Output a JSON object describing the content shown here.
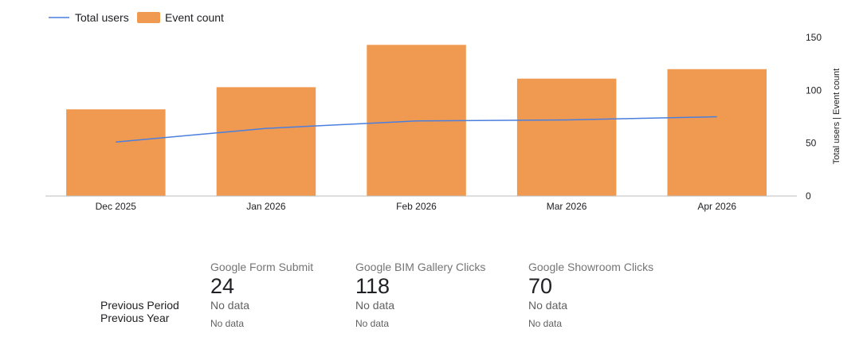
{
  "chart_data": {
    "type": "bar",
    "categories": [
      "Dec 2025",
      "Jan 2026",
      "Feb 2026",
      "Mar 2026",
      "Apr 2026"
    ],
    "series": [
      {
        "name": "Event count",
        "type": "bar",
        "values": [
          82,
          103,
          143,
          111,
          120
        ],
        "color": "#f09a51"
      },
      {
        "name": "Total users",
        "type": "line",
        "values": [
          51,
          64,
          71,
          72,
          75
        ],
        "color": "#4a7fde"
      }
    ],
    "y_axis": {
      "position": "right",
      "label": "Total users | Event count",
      "ylim": [
        0,
        150
      ],
      "ticks": [
        0,
        50,
        100,
        150
      ]
    },
    "legend": {
      "position": "top-left",
      "entries": [
        "Total users",
        "Event count"
      ]
    },
    "grid": false
  },
  "legend": {
    "line_label": "Total users",
    "bar_label": "Event count"
  },
  "comparison_labels": {
    "previous_period": "Previous Period",
    "previous_year": "Previous Year"
  },
  "scorecards": [
    {
      "title": "Google Form Submit",
      "value": "24",
      "previous_period": "No data",
      "previous_year": "No data"
    },
    {
      "title": "Google BIM Gallery Clicks",
      "value": "118",
      "previous_period": "No data",
      "previous_year": "No data"
    },
    {
      "title": "Google Showroom Clicks",
      "value": "70",
      "previous_period": "No data",
      "previous_year": "No data"
    }
  ]
}
